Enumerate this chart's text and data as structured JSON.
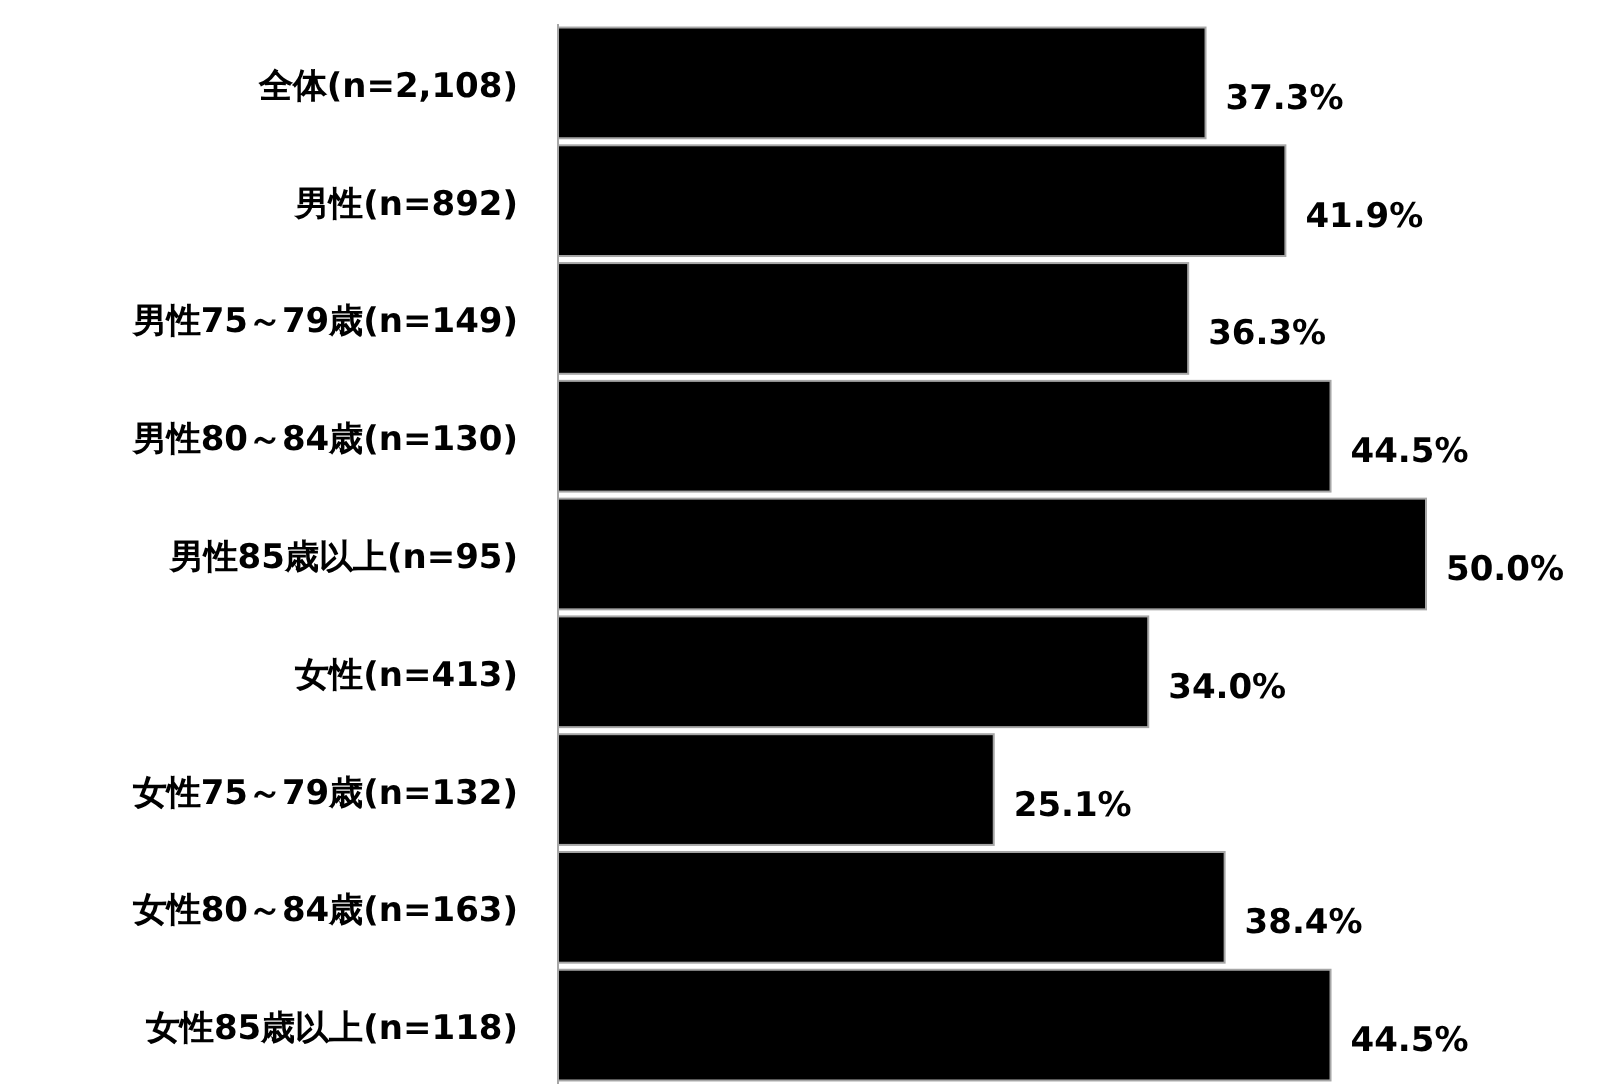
{
  "chart_data": {
    "type": "bar",
    "orientation": "horizontal",
    "categories": [
      "全体(n=2,108)",
      "男性(n=892)",
      "男性75～79歳(n=149)",
      "男性80～84歳(n=130)",
      "男性85歳以上(n=95)",
      "女性(n=413)",
      "女性75～79歳(n=132)",
      "女性80～84歳(n=163)",
      "女性85歳以上(n=118)"
    ],
    "values": [
      37.3,
      41.9,
      36.3,
      44.5,
      50.0,
      34.0,
      25.1,
      38.4,
      44.5
    ],
    "value_labels": [
      "37.3%",
      "41.9%",
      "36.3%",
      "44.5%",
      "50.0%",
      "34.0%",
      "25.1%",
      "38.4%",
      "44.5%"
    ],
    "color": "#000000"
  }
}
